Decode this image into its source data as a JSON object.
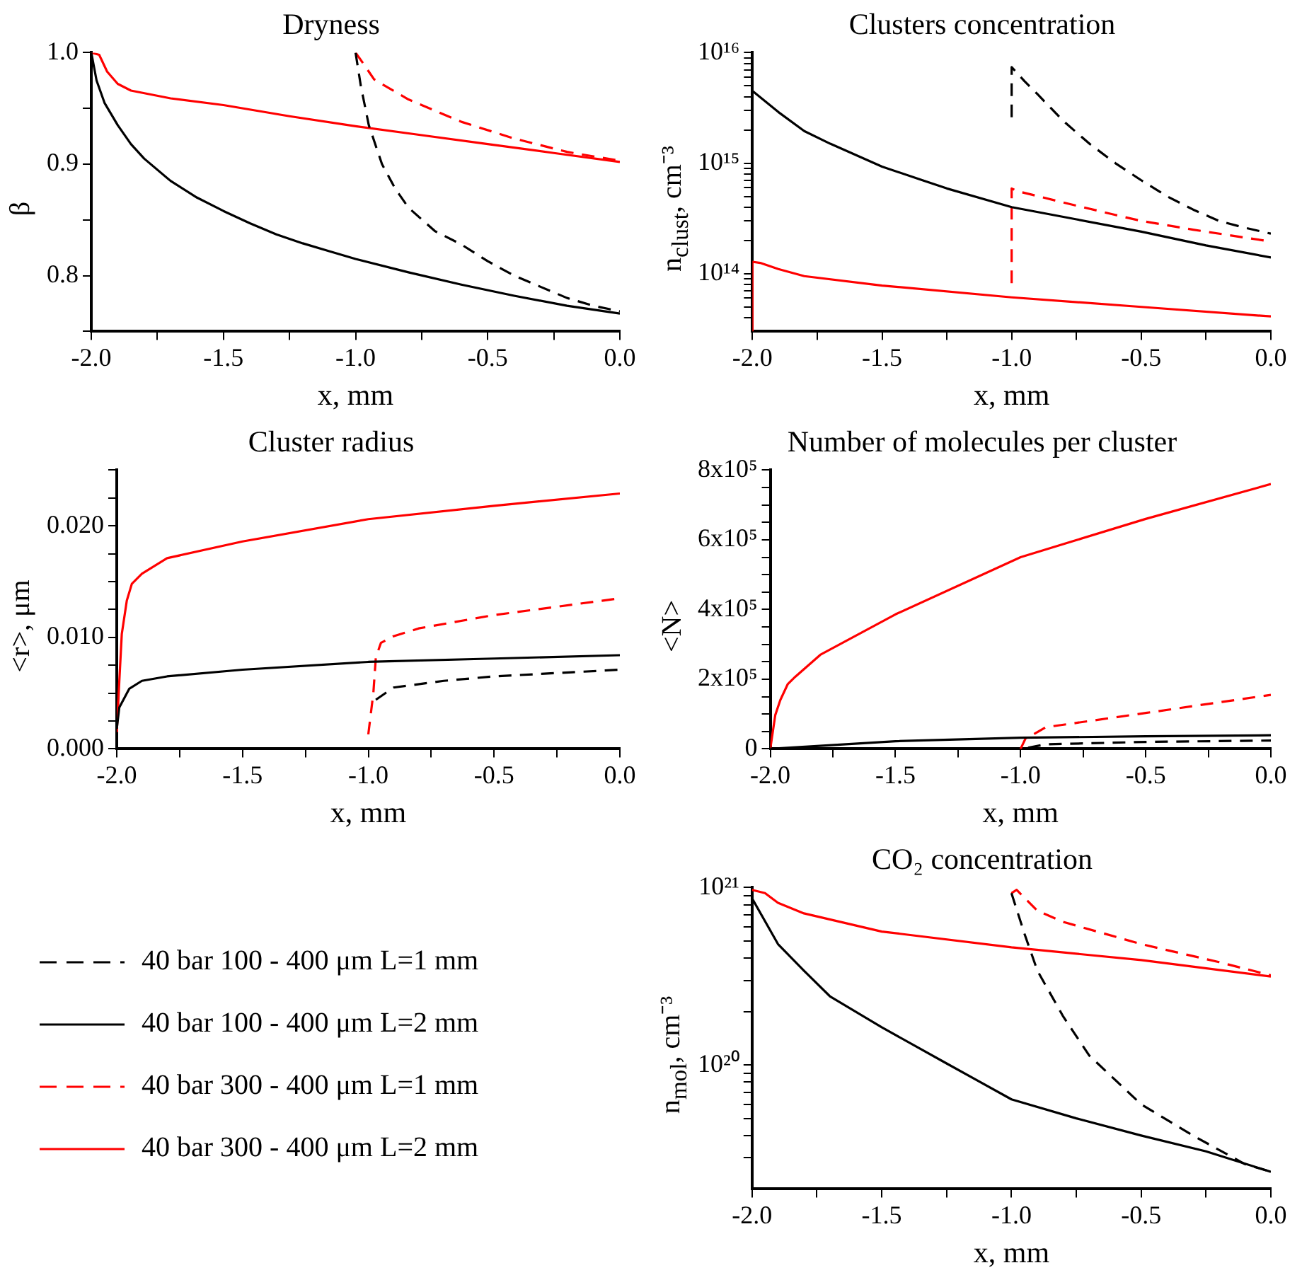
{
  "chart_data": [
    {
      "type": "line",
      "title": "Dryness",
      "xlabel": "x, mm",
      "ylabel": "β",
      "xlim": [
        -2,
        0
      ],
      "ylim": [
        0.75,
        1
      ],
      "xticks": [
        {
          "value": -2,
          "label": "-2.0"
        },
        {
          "value": -1.75,
          "label": null
        },
        {
          "value": -1.5,
          "label": "-1.5"
        },
        {
          "value": -1.25,
          "label": null
        },
        {
          "value": -1,
          "label": "-1.0"
        },
        {
          "value": -0.75,
          "label": null
        },
        {
          "value": -0.5,
          "label": "-0.5"
        },
        {
          "value": -0.25,
          "label": null
        },
        {
          "value": 0,
          "label": "0.0"
        }
      ],
      "yticks": [
        {
          "value": 0.75,
          "label": null
        },
        0.8,
        {
          "value": 0.85,
          "label": null
        },
        0.9,
        {
          "value": 0.95,
          "label": null
        },
        {
          "value": 1,
          "label": "1.0"
        }
      ],
      "grid": false,
      "marker": "none",
      "series": [
        {
          "color": "#000000",
          "line_style": "dashed",
          "x": [
            -1,
            -0.98,
            -0.95,
            -0.9,
            -0.85,
            -0.8,
            -0.7,
            -0.6,
            -0.5,
            -0.4,
            -0.3,
            -0.2,
            -0.1,
            0
          ],
          "values": [
            1,
            0.97,
            0.935,
            0.9,
            0.878,
            0.861,
            0.84,
            0.828,
            0.813,
            0.8,
            0.79,
            0.78,
            0.773,
            0.768
          ]
        },
        {
          "color": "#000000",
          "line_style": "solid",
          "x": [
            -2,
            -1.98,
            -1.95,
            -1.9,
            -1.85,
            -1.8,
            -1.7,
            -1.6,
            -1.5,
            -1.4,
            -1.3,
            -1.2,
            -1.1,
            -1,
            -0.8,
            -0.6,
            -0.4,
            -0.2,
            0
          ],
          "values": [
            1,
            0.975,
            0.955,
            0.935,
            0.918,
            0.905,
            0.885,
            0.87,
            0.858,
            0.847,
            0.837,
            0.829,
            0.822,
            0.815,
            0.803,
            0.792,
            0.782,
            0.773,
            0.766
          ]
        },
        {
          "color": "#ff0000",
          "line_style": "dashed",
          "x": [
            -1,
            -0.97,
            -0.93,
            -0.8,
            -0.6,
            -0.4,
            -0.2,
            0
          ],
          "values": [
            1,
            0.99,
            0.976,
            0.958,
            0.938,
            0.923,
            0.911,
            0.903
          ]
        },
        {
          "color": "#ff0000",
          "line_style": "solid",
          "x": [
            -2,
            -1.97,
            -1.94,
            -1.9,
            -1.85,
            -1.7,
            -1.5,
            -1.25,
            -1,
            -0.75,
            -0.5,
            -0.25,
            0
          ],
          "values": [
            1,
            0.998,
            0.983,
            0.972,
            0.966,
            0.959,
            0.953,
            0.943,
            0.934,
            0.926,
            0.918,
            0.91,
            0.902
          ]
        }
      ]
    },
    {
      "type": "line",
      "title": "Clusters concentration",
      "xlabel": "x, mm",
      "ylabel": "n$_{clust}$, cm⁻³",
      "xlim": [
        -2,
        0
      ],
      "ylim": [
        30000000000000.0,
        1e+16
      ],
      "log": true,
      "xticks": [
        {
          "value": -2,
          "label": "-2.0"
        },
        {
          "value": -1.75,
          "label": null
        },
        {
          "value": -1.5,
          "label": "-1.5"
        },
        {
          "value": -1.25,
          "label": null
        },
        {
          "value": -1,
          "label": "-1.0"
        },
        {
          "value": -0.75,
          "label": null
        },
        {
          "value": -0.5,
          "label": "-0.5"
        },
        {
          "value": -0.25,
          "label": null
        },
        {
          "value": 0,
          "label": "0.0"
        }
      ],
      "yticks": [
        {
          "value": 40000000000000.0,
          "label": null
        },
        {
          "value": 50000000000000.0,
          "label": null
        },
        {
          "value": 60000000000000.0,
          "label": null
        },
        {
          "value": 70000000000000.0,
          "label": null
        },
        {
          "value": 80000000000000.0,
          "label": null
        },
        {
          "value": 90000000000000.0,
          "label": null
        },
        {
          "value": 100000000000000.0,
          "label": "10¹⁴"
        },
        {
          "value": 200000000000000.0,
          "label": null
        },
        {
          "value": 300000000000000.0,
          "label": null
        },
        {
          "value": 400000000000000.0,
          "label": null
        },
        {
          "value": 500000000000000.0,
          "label": null
        },
        {
          "value": 600000000000000.0,
          "label": null
        },
        {
          "value": 700000000000000.0,
          "label": null
        },
        {
          "value": 800000000000000.0,
          "label": null
        },
        {
          "value": 900000000000000.0,
          "label": null
        },
        {
          "value": 1000000000000000.0,
          "label": "10¹⁵"
        },
        {
          "value": 2000000000000000.0,
          "label": null
        },
        {
          "value": 3000000000000000.0,
          "label": null
        },
        {
          "value": 4000000000000000.0,
          "label": null
        },
        {
          "value": 5000000000000000.0,
          "label": null
        },
        {
          "value": 6000000000000000.0,
          "label": null
        },
        {
          "value": 7000000000000000.0,
          "label": null
        },
        {
          "value": 8000000000000000.0,
          "label": null
        },
        {
          "value": 9000000000000000.0,
          "label": null
        },
        {
          "value": 1e+16,
          "label": "10¹⁶"
        }
      ],
      "grid": false,
      "marker": "none",
      "series": [
        {
          "color": "#000000",
          "line_style": "dashed",
          "x": [
            -1,
            -1,
            -0.95,
            -0.9,
            -0.8,
            -0.7,
            -0.6,
            -0.5,
            -0.4,
            -0.3,
            -0.2,
            -0.1,
            0
          ],
          "values": [
            2600000000000000.0,
            7400000000000000.0,
            5500000000000000.0,
            4200000000000000.0,
            2400000000000000.0,
            1500000000000000.0,
            1000000000000000.0,
            700000000000000.0,
            500000000000000.0,
            380000000000000.0,
            300000000000000.0,
            260000000000000.0,
            230000000000000.0
          ]
        },
        {
          "color": "#000000",
          "line_style": "solid",
          "x": [
            -2,
            -1.9,
            -1.8,
            -1.7,
            -1.5,
            -1.25,
            -1,
            -0.75,
            -0.5,
            -0.25,
            0
          ],
          "values": [
            4500000000000000.0,
            2900000000000000.0,
            1950000000000000.0,
            1500000000000000.0,
            930000000000000.0,
            590000000000000.0,
            400000000000000.0,
            310000000000000.0,
            240000000000000.0,
            180000000000000.0,
            140000000000000.0
          ]
        },
        {
          "color": "#ff0000",
          "line_style": "dashed",
          "x": [
            -1,
            -1,
            -0.98,
            -0.8,
            -0.6,
            -0.5,
            -0.3,
            0
          ],
          "values": [
            82000000000000.0,
            590000000000000.0,
            560000000000000.0,
            440000000000000.0,
            340000000000000.0,
            300000000000000.0,
            250000000000000.0,
            195000000000000.0
          ]
        },
        {
          "color": "#ff0000",
          "line_style": "solid",
          "x": [
            -2,
            -2,
            -1.97,
            -1.9,
            -1.8,
            -1.5,
            -1,
            -0.5,
            0
          ],
          "values": [
            30000000000000.0,
            128000000000000.0,
            125000000000000.0,
            110000000000000.0,
            95000000000000.0,
            78000000000000.0,
            61000000000000.0,
            50000000000000.0,
            41000000000000.0
          ]
        }
      ]
    },
    {
      "type": "line",
      "title": "Cluster radius",
      "xlabel": "x, mm",
      "ylabel": "<r>, μm",
      "xlim": [
        -2,
        0
      ],
      "ylim": [
        0,
        0.025
      ],
      "xticks": [
        {
          "value": -2,
          "label": "-2.0"
        },
        {
          "value": -1.75,
          "label": null
        },
        {
          "value": -1.5,
          "label": "-1.5"
        },
        {
          "value": -1.25,
          "label": null
        },
        {
          "value": -1,
          "label": "-1.0"
        },
        {
          "value": -0.75,
          "label": null
        },
        {
          "value": -0.5,
          "label": "-0.5"
        },
        {
          "value": -0.25,
          "label": null
        },
        {
          "value": 0,
          "label": "0.0"
        }
      ],
      "yticks": [
        {
          "value": 0,
          "label": "0.000"
        },
        {
          "value": 0.0025,
          "label": null
        },
        {
          "value": 0.005,
          "label": null
        },
        {
          "value": 0.0075,
          "label": null
        },
        {
          "value": 0.01,
          "label": "0.010"
        },
        {
          "value": 0.0125,
          "label": null
        },
        {
          "value": 0.015,
          "label": null
        },
        {
          "value": 0.0175,
          "label": null
        },
        {
          "value": 0.02,
          "label": "0.020"
        },
        {
          "value": 0.0225,
          "label": null
        },
        {
          "value": 0.025,
          "label": null
        }
      ],
      "grid": false,
      "marker": "none",
      "series": [
        {
          "color": "#000000",
          "line_style": "dashed",
          "x": [
            -0.97,
            -0.9,
            -0.7,
            -0.5,
            -0.25,
            0
          ],
          "values": [
            0.0044,
            0.0055,
            0.0061,
            0.0065,
            0.0068,
            0.0071
          ]
        },
        {
          "color": "#000000",
          "line_style": "solid",
          "x": [
            -2,
            -1.99,
            -1.95,
            -1.9,
            -1.8,
            -1.5,
            -1,
            -0.5,
            0
          ],
          "values": [
            0.0018,
            0.0037,
            0.0054,
            0.0061,
            0.0065,
            0.0071,
            0.0078,
            0.0081,
            0.0084
          ]
        },
        {
          "color": "#ff0000",
          "line_style": "dashed",
          "x": [
            -1,
            -0.98,
            -0.97,
            -0.95,
            -0.9,
            -0.8,
            -0.5,
            0
          ],
          "values": [
            0.0013,
            0.005,
            0.0082,
            0.0095,
            0.0101,
            0.0108,
            0.012,
            0.0135
          ]
        },
        {
          "color": "#ff0000",
          "line_style": "solid",
          "x": [
            -2,
            -1.99,
            -1.98,
            -1.96,
            -1.94,
            -1.9,
            -1.8,
            -1.5,
            -1,
            -0.5,
            0
          ],
          "values": [
            0.0015,
            0.006,
            0.0103,
            0.0133,
            0.0148,
            0.0157,
            0.0171,
            0.0186,
            0.0206,
            0.0218,
            0.0229
          ]
        }
      ]
    },
    {
      "type": "line",
      "title": "Number of molecules per cluster",
      "xlabel": "x, mm",
      "ylabel": "<N>",
      "xlim": [
        -2,
        0
      ],
      "ylim": [
        0,
        800000
      ],
      "xticks": [
        {
          "value": -2,
          "label": "-2.0"
        },
        {
          "value": -1.75,
          "label": null
        },
        {
          "value": -1.5,
          "label": "-1.5"
        },
        {
          "value": -1.25,
          "label": null
        },
        {
          "value": -1,
          "label": "-1.0"
        },
        {
          "value": -0.75,
          "label": null
        },
        {
          "value": -0.5,
          "label": "-0.5"
        },
        {
          "value": -0.25,
          "label": null
        },
        {
          "value": 0,
          "label": "0.0"
        }
      ],
      "yticks": [
        0,
        {
          "value": 50000,
          "label": null
        },
        {
          "value": 100000,
          "label": null
        },
        {
          "value": 150000,
          "label": null
        },
        {
          "value": 200000,
          "label": "2x10⁵"
        },
        {
          "value": 250000,
          "label": null
        },
        {
          "value": 300000,
          "label": null
        },
        {
          "value": 350000,
          "label": null
        },
        {
          "value": 400000,
          "label": "4x10⁵"
        },
        {
          "value": 450000,
          "label": null
        },
        {
          "value": 500000,
          "label": null
        },
        {
          "value": 550000,
          "label": null
        },
        {
          "value": 600000,
          "label": "6x10⁵"
        },
        {
          "value": 650000,
          "label": null
        },
        {
          "value": 700000,
          "label": null
        },
        {
          "value": 750000,
          "label": null
        },
        {
          "value": 800000,
          "label": "8x10⁵"
        }
      ],
      "grid": false,
      "marker": "none",
      "series": [
        {
          "color": "#000000",
          "line_style": "dashed",
          "x": [
            -0.97,
            -0.9,
            -0.5,
            0
          ],
          "values": [
            3000,
            13000,
            20000,
            24000
          ]
        },
        {
          "color": "#000000",
          "line_style": "solid",
          "x": [
            -2,
            -1.5,
            -1,
            -0.5,
            0
          ],
          "values": [
            0,
            22000,
            32000,
            36000,
            39000
          ]
        },
        {
          "color": "#ff0000",
          "line_style": "dashed",
          "x": [
            -1,
            -0.98,
            -0.95,
            -0.9,
            -0.5,
            0
          ],
          "values": [
            0,
            30000,
            41000,
            62000,
            103000,
            155000
          ]
        },
        {
          "color": "#ff0000",
          "line_style": "solid",
          "x": [
            -2,
            -1.98,
            -1.96,
            -1.93,
            -1.9,
            -1.8,
            -1.5,
            -1,
            -0.5,
            0
          ],
          "values": [
            0,
            97000,
            140000,
            186000,
            207000,
            270000,
            386000,
            550000,
            660000,
            760000
          ]
        }
      ]
    },
    {
      "type": "line",
      "title": "CO₂ concentration",
      "xlabel": "x, mm",
      "ylabel": "n$_{mol}$, cm⁻³",
      "xlim": [
        -2,
        0
      ],
      "ylim": [
        2e+19,
        1e+21
      ],
      "log": true,
      "xticks": [
        {
          "value": -2,
          "label": "-2.0"
        },
        {
          "value": -1.75,
          "label": null
        },
        {
          "value": -1.5,
          "label": "-1.5"
        },
        {
          "value": -1.25,
          "label": null
        },
        {
          "value": -1,
          "label": "-1.0"
        },
        {
          "value": -0.75,
          "label": null
        },
        {
          "value": -0.5,
          "label": "-0.5"
        },
        {
          "value": -0.25,
          "label": null
        },
        {
          "value": 0,
          "label": "0.0"
        }
      ],
      "yticks": [
        {
          "value": 3e+19,
          "label": null
        },
        {
          "value": 4e+19,
          "label": null
        },
        {
          "value": 5e+19,
          "label": null
        },
        {
          "value": 6e+19,
          "label": null
        },
        {
          "value": 7e+19,
          "label": null
        },
        {
          "value": 8e+19,
          "label": null
        },
        {
          "value": 9e+19,
          "label": null
        },
        {
          "value": 1e+20,
          "label": "10²⁰"
        },
        {
          "value": 2e+20,
          "label": null
        },
        {
          "value": 3e+20,
          "label": null
        },
        {
          "value": 4e+20,
          "label": null
        },
        {
          "value": 5e+20,
          "label": null
        },
        {
          "value": 6e+20,
          "label": null
        },
        {
          "value": 7e+20,
          "label": null
        },
        {
          "value": 8e+20,
          "label": null
        },
        {
          "value": 9e+20,
          "label": null
        },
        {
          "value": 1e+21,
          "label": "10²¹"
        }
      ],
      "grid": false,
      "marker": "none",
      "legend": "left",
      "series": [
        {
          "name": "40 bar 100 - 400 μm L=1 mm",
          "color": "#000000",
          "line_style": "dashed",
          "x": [
            -1,
            -0.95,
            -0.9,
            -0.8,
            -0.7,
            -0.5,
            -0.3,
            -0.1,
            0
          ],
          "values": [
            9.3e+20,
            5.5e+20,
            3.4e+20,
            1.87e+20,
            1.13e+20,
            6e+19,
            4e+19,
            2.76e+19,
            2.5e+19
          ]
        },
        {
          "name": "40 bar 100 - 400 μm L=2 mm",
          "color": "#000000",
          "line_style": "solid",
          "x": [
            -2,
            -1.9,
            -1.8,
            -1.7,
            -1.5,
            -1.25,
            -1,
            -0.75,
            -0.5,
            -0.25,
            0
          ],
          "values": [
            8.7e+20,
            4.8e+20,
            3.4e+20,
            2.44e+20,
            1.63e+20,
            1.02e+20,
            6.4e+19,
            5e+19,
            4e+19,
            3.26e+19,
            2.5e+19
          ]
        },
        {
          "name": "40 bar 300 - 400 μm L=1 mm",
          "color": "#ff0000",
          "line_style": "dashed",
          "x": [
            -1,
            -0.98,
            -0.9,
            -0.8,
            -0.5,
            -0.2,
            0
          ],
          "values": [
            9.3e+20,
            9.7e+20,
            7.4e+20,
            6.4e+20,
            4.8e+20,
            3.8e+20,
            3.2e+20
          ]
        },
        {
          "name": "40 bar 300 - 400 μm L=2 mm",
          "color": "#ff0000",
          "line_style": "solid",
          "x": [
            -2,
            -1.95,
            -1.9,
            -1.8,
            -1.5,
            -1,
            -0.5,
            0
          ],
          "values": [
            9.7e+20,
            9.3e+20,
            8.2e+20,
            7.15e+20,
            5.65e+20,
            4.6e+20,
            3.9e+20,
            3.15e+20
          ]
        }
      ]
    }
  ]
}
